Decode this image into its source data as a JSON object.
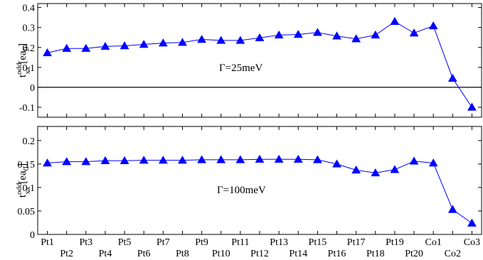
{
  "chart_data": [
    {
      "type": "line",
      "ylabel": {
        "base": "t",
        "sup": "odd",
        "sub": "xx",
        "unit_pre": "[ea",
        "unit_sub": "0",
        "unit_post": "]"
      },
      "annotation": "Γ=25meV",
      "ylim": [
        -0.15,
        0.42
      ],
      "yticks": [
        -0.1,
        0,
        0.1,
        0.2,
        0.3,
        0.4
      ],
      "ytick_labels": [
        "-0.1",
        "0",
        "0.1",
        "0.2",
        "0.3",
        "0.4"
      ],
      "zero_line": true,
      "color": "#0000ff",
      "marker": "triangle",
      "values": [
        0.173,
        0.195,
        0.195,
        0.205,
        0.208,
        0.215,
        0.222,
        0.225,
        0.24,
        0.235,
        0.235,
        0.248,
        0.262,
        0.265,
        0.275,
        0.257,
        0.243,
        0.262,
        0.33,
        0.272,
        0.308,
        0.045,
        -0.1
      ]
    },
    {
      "type": "line",
      "ylabel": {
        "base": "t",
        "sup": "odd",
        "sub": "xx",
        "unit_pre": "[ea",
        "unit_sub": "0",
        "unit_post": "]"
      },
      "annotation": "Γ=100meV",
      "ylim": [
        0,
        0.23
      ],
      "yticks": [
        0,
        0.05,
        0.1,
        0.15,
        0.2
      ],
      "ytick_labels": [
        "0",
        "0.05",
        "0.1",
        "0.15",
        "0.2"
      ],
      "zero_line": false,
      "color": "#0000ff",
      "marker": "triangle",
      "values": [
        0.152,
        0.155,
        0.155,
        0.157,
        0.157,
        0.158,
        0.158,
        0.158,
        0.159,
        0.159,
        0.159,
        0.16,
        0.16,
        0.16,
        0.159,
        0.15,
        0.137,
        0.131,
        0.138,
        0.156,
        0.152,
        0.053,
        0.024
      ]
    }
  ],
  "x_tick_labels": [
    "Pt1",
    "Pt2",
    "Pt3",
    "Pt4",
    "Pt5",
    "Pt6",
    "Pt7",
    "Pt8",
    "Pt9",
    "Pt10",
    "Pt11",
    "Pt12",
    "Pt13",
    "Pt14",
    "Pt15",
    "Pt16",
    "Pt17",
    "Pt18",
    "Pt19",
    "Pt20",
    "Co1",
    "Co2",
    "Co3"
  ]
}
